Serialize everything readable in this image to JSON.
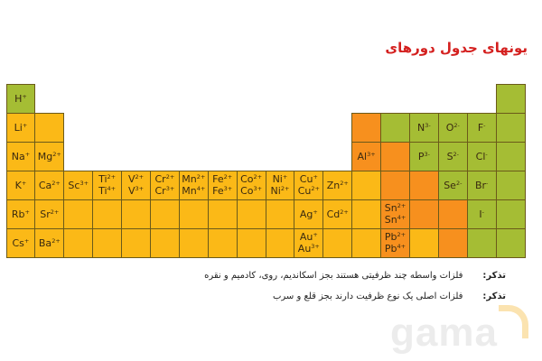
{
  "title": "یونهای جدول دورهای",
  "colors": {
    "y": "#fbb917",
    "o": "#f7901e",
    "g": "#a5bd34"
  },
  "rows": [
    [
      {
        "c": "g",
        "ions": [
          [
            "H",
            "+"
          ]
        ]
      },
      null,
      null,
      null,
      null,
      null,
      null,
      null,
      null,
      null,
      null,
      null,
      null,
      null,
      null,
      null,
      null,
      {
        "c": "g",
        "ions": []
      }
    ],
    [
      {
        "c": "y",
        "ions": [
          [
            "Li",
            "+"
          ]
        ]
      },
      {
        "c": "y",
        "ions": []
      },
      null,
      null,
      null,
      null,
      null,
      null,
      null,
      null,
      null,
      null,
      {
        "c": "o",
        "ions": []
      },
      {
        "c": "g",
        "ions": []
      },
      {
        "c": "g",
        "ions": [
          [
            "N",
            "3-"
          ]
        ]
      },
      {
        "c": "g",
        "ions": [
          [
            "O",
            "2-"
          ]
        ]
      },
      {
        "c": "g",
        "ions": [
          [
            "F",
            "-"
          ]
        ]
      },
      {
        "c": "g",
        "ions": []
      }
    ],
    [
      {
        "c": "y",
        "ions": [
          [
            "Na",
            "+"
          ]
        ]
      },
      {
        "c": "y",
        "ions": [
          [
            "Mg",
            "2+"
          ]
        ]
      },
      null,
      null,
      null,
      null,
      null,
      null,
      null,
      null,
      null,
      null,
      {
        "c": "o",
        "ions": [
          [
            "Al",
            "3+"
          ]
        ]
      },
      {
        "c": "o",
        "ions": []
      },
      {
        "c": "g",
        "ions": [
          [
            "P",
            "3-"
          ]
        ]
      },
      {
        "c": "g",
        "ions": [
          [
            "S",
            "2-"
          ]
        ]
      },
      {
        "c": "g",
        "ions": [
          [
            "Cl",
            "-"
          ]
        ]
      },
      {
        "c": "g",
        "ions": []
      }
    ],
    [
      {
        "c": "y",
        "ions": [
          [
            "K",
            "+"
          ]
        ]
      },
      {
        "c": "y",
        "ions": [
          [
            "Ca",
            "2+"
          ]
        ]
      },
      {
        "c": "y",
        "ions": [
          [
            "Sc",
            "3+"
          ]
        ]
      },
      {
        "c": "y",
        "ions": [
          [
            "Ti",
            "2+"
          ],
          [
            "Ti",
            "4+"
          ]
        ]
      },
      {
        "c": "y",
        "ions": [
          [
            "V",
            "2+"
          ],
          [
            "V",
            "3+"
          ]
        ]
      },
      {
        "c": "y",
        "ions": [
          [
            "Cr",
            "2+"
          ],
          [
            "Cr",
            "3+"
          ]
        ]
      },
      {
        "c": "y",
        "ions": [
          [
            "Mn",
            "2+"
          ],
          [
            "Mn",
            "4+"
          ]
        ]
      },
      {
        "c": "y",
        "ions": [
          [
            "Fe",
            "2+"
          ],
          [
            "Fe",
            "3+"
          ]
        ]
      },
      {
        "c": "y",
        "ions": [
          [
            "Co",
            "2+"
          ],
          [
            "Co",
            "3+"
          ]
        ]
      },
      {
        "c": "y",
        "ions": [
          [
            "Ni",
            "+"
          ],
          [
            "Ni",
            "2+"
          ]
        ]
      },
      {
        "c": "y",
        "ions": [
          [
            "Cu",
            "+"
          ],
          [
            "Cu",
            "2+"
          ]
        ]
      },
      {
        "c": "y",
        "ions": [
          [
            "Zn",
            "2+"
          ]
        ]
      },
      {
        "c": "y",
        "ions": []
      },
      {
        "c": "o",
        "ions": []
      },
      {
        "c": "o",
        "ions": []
      },
      {
        "c": "g",
        "ions": [
          [
            "Se",
            "2-"
          ]
        ]
      },
      {
        "c": "g",
        "ions": [
          [
            "Br",
            "-"
          ]
        ]
      },
      {
        "c": "g",
        "ions": []
      }
    ],
    [
      {
        "c": "y",
        "ions": [
          [
            "Rb",
            "+"
          ]
        ]
      },
      {
        "c": "y",
        "ions": [
          [
            "Sr",
            "2+"
          ]
        ]
      },
      {
        "c": "y",
        "ions": []
      },
      {
        "c": "y",
        "ions": []
      },
      {
        "c": "y",
        "ions": []
      },
      {
        "c": "y",
        "ions": []
      },
      {
        "c": "y",
        "ions": []
      },
      {
        "c": "y",
        "ions": []
      },
      {
        "c": "y",
        "ions": []
      },
      {
        "c": "y",
        "ions": []
      },
      {
        "c": "y",
        "ions": [
          [
            "Ag",
            "+"
          ]
        ]
      },
      {
        "c": "y",
        "ions": [
          [
            "Cd",
            "2+"
          ]
        ]
      },
      {
        "c": "y",
        "ions": []
      },
      {
        "c": "o",
        "ions": [
          [
            "Sn",
            "2+"
          ],
          [
            "Sn",
            "4+"
          ]
        ]
      },
      {
        "c": "o",
        "ions": []
      },
      {
        "c": "o",
        "ions": []
      },
      {
        "c": "g",
        "ions": [
          [
            "I",
            "-"
          ]
        ]
      },
      {
        "c": "g",
        "ions": []
      }
    ],
    [
      {
        "c": "y",
        "ions": [
          [
            "Cs",
            "+"
          ]
        ]
      },
      {
        "c": "y",
        "ions": [
          [
            "Ba",
            "2+"
          ]
        ]
      },
      {
        "c": "y",
        "ions": []
      },
      {
        "c": "y",
        "ions": []
      },
      {
        "c": "y",
        "ions": []
      },
      {
        "c": "y",
        "ions": []
      },
      {
        "c": "y",
        "ions": []
      },
      {
        "c": "y",
        "ions": []
      },
      {
        "c": "y",
        "ions": []
      },
      {
        "c": "y",
        "ions": []
      },
      {
        "c": "y",
        "ions": [
          [
            "Au",
            "+"
          ],
          [
            "Au",
            "3+"
          ]
        ]
      },
      {
        "c": "y",
        "ions": []
      },
      {
        "c": "y",
        "ions": []
      },
      {
        "c": "o",
        "ions": [
          [
            "Pb",
            "2+"
          ],
          [
            "Pb",
            "4+"
          ]
        ]
      },
      {
        "c": "y",
        "ions": []
      },
      {
        "c": "o",
        "ions": []
      },
      {
        "c": "g",
        "ions": []
      },
      {
        "c": "g",
        "ions": []
      }
    ]
  ],
  "notes": [
    {
      "label": "تذکر:",
      "text": "فلزات واسطه چند ظرفیتی هستند بجز اسکاندیم، روی، کادمیم و نقره"
    },
    {
      "label": "تذکر:",
      "text": "فلزات اصلی یک نوع ظرفیت دارند بجز قلع و سرب"
    }
  ],
  "watermark": "Gama"
}
